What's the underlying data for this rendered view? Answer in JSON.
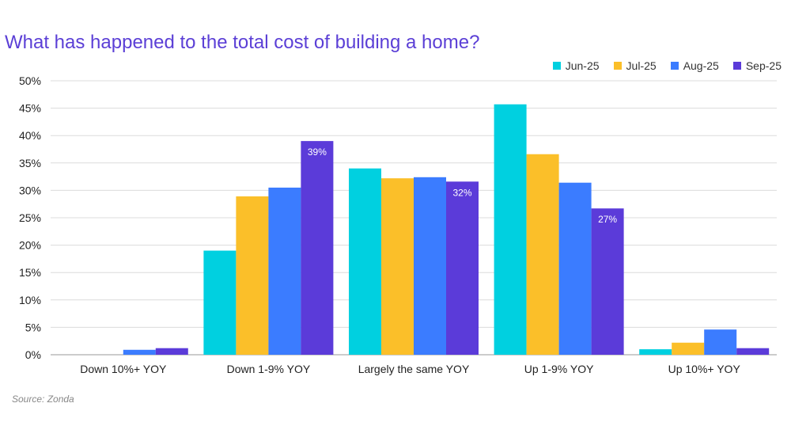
{
  "chart_data": {
    "type": "bar",
    "title": "What has happened to the total cost of building a home?",
    "categories": [
      "Down 10%+ YOY",
      "Down 1-9% YOY",
      "Largely the same YOY",
      "Up 1-9% YOY",
      "Up 10%+ YOY"
    ],
    "series": [
      {
        "name": "Jun-25",
        "color": "#00d0e0",
        "values": [
          0,
          19,
          34,
          45.7,
          1
        ]
      },
      {
        "name": "Jul-25",
        "color": "#fbbf29",
        "values": [
          0,
          28.9,
          32.2,
          36.6,
          2.2
        ]
      },
      {
        "name": "Aug-25",
        "color": "#3b7cff",
        "values": [
          0.9,
          30.5,
          32.4,
          31.4,
          4.6
        ]
      },
      {
        "name": "Sep-25",
        "color": "#5b3bd9",
        "values": [
          1.2,
          39,
          31.6,
          26.7,
          1.2
        ]
      }
    ],
    "data_labels": [
      {
        "series": "Sep-25",
        "category": "Down 1-9% YOY",
        "text": "39%"
      },
      {
        "series": "Sep-25",
        "category": "Largely the same YOY",
        "text": "32%"
      },
      {
        "series": "Sep-25",
        "category": "Up 1-9% YOY",
        "text": "27%"
      }
    ],
    "ylim": [
      0,
      50
    ],
    "yticks": [
      "0%",
      "5%",
      "10%",
      "15%",
      "20%",
      "25%",
      "30%",
      "35%",
      "40%",
      "45%",
      "50%"
    ],
    "grid": true,
    "legend_position": "top-right"
  },
  "source": "Source: Zonda"
}
